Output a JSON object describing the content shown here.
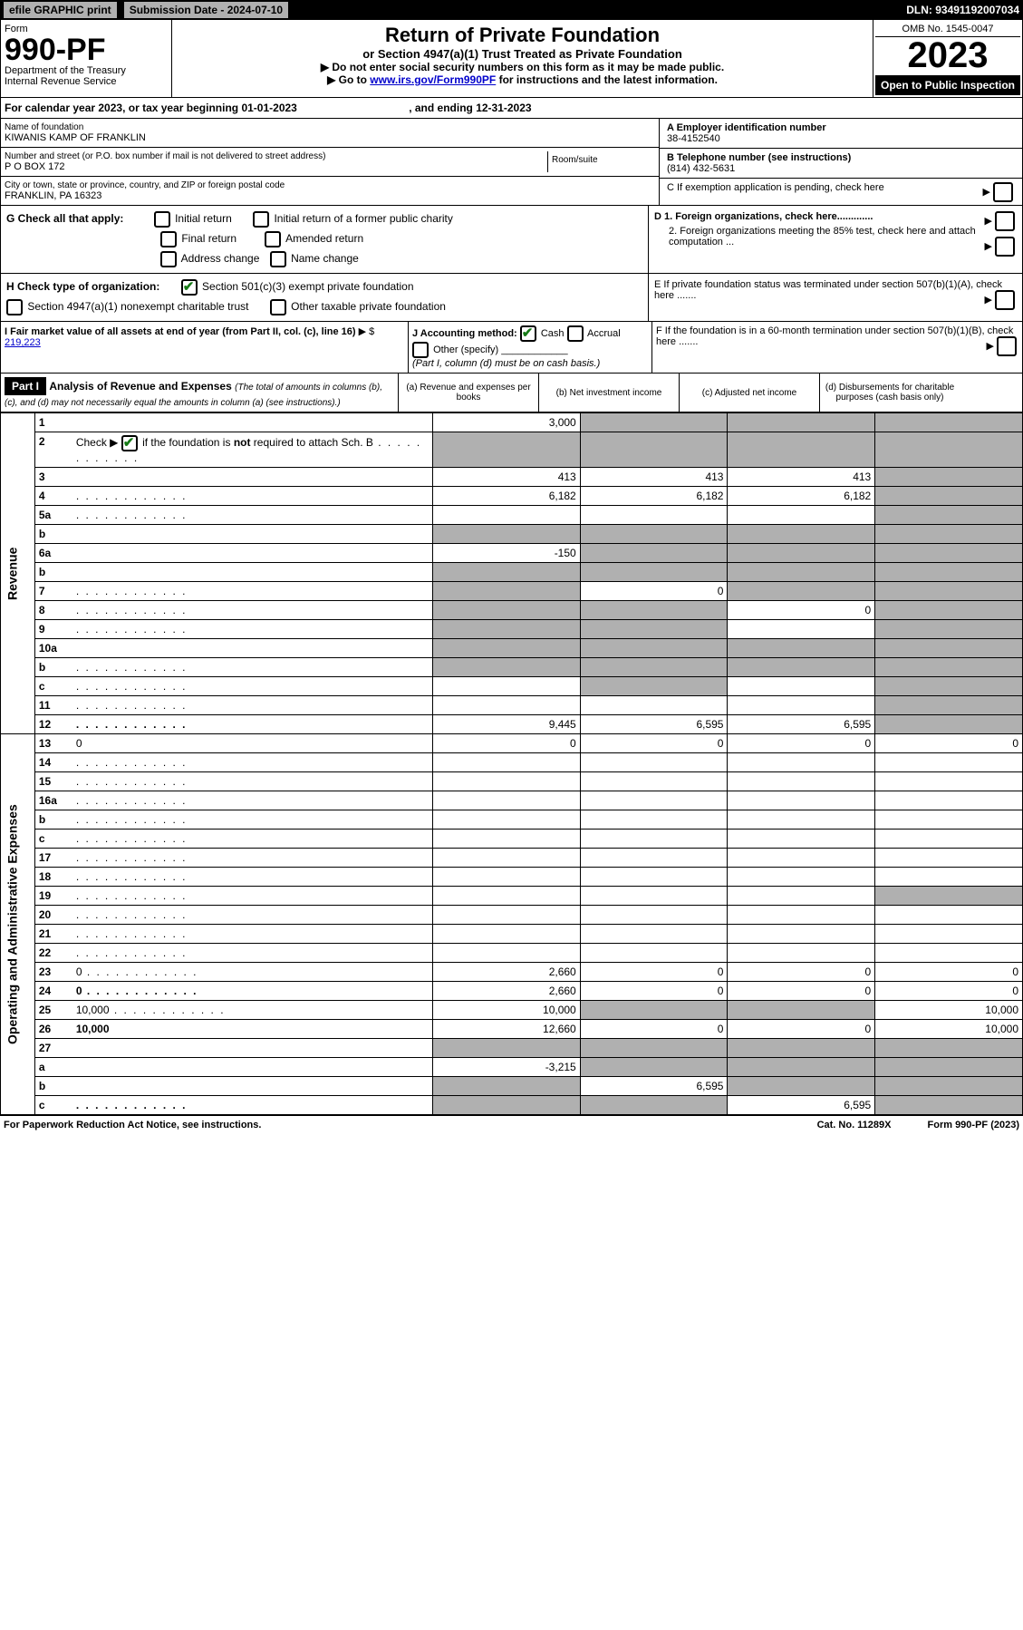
{
  "top": {
    "efile": "efile GRAPHIC print",
    "submission": "Submission Date - 2024-07-10",
    "dln": "DLN: 93491192007034"
  },
  "header": {
    "form_label": "Form",
    "form_number": "990-PF",
    "dept": "Department of the Treasury",
    "irs": "Internal Revenue Service",
    "title": "Return of Private Foundation",
    "subtitle": "or Section 4947(a)(1) Trust Treated as Private Foundation",
    "note1": "▶ Do not enter social security numbers on this form as it may be made public.",
    "note2_pre": "▶ Go to ",
    "note2_link": "www.irs.gov/Form990PF",
    "note2_post": " for instructions and the latest information.",
    "omb": "OMB No. 1545-0047",
    "year": "2023",
    "inspection": "Open to Public Inspection"
  },
  "calendar": {
    "text_pre": "For calendar year 2023, or tax year beginning ",
    "begin": "01-01-2023",
    "text_mid": ", and ending ",
    "end": "12-31-2023"
  },
  "info": {
    "name_label": "Name of foundation",
    "name": "KIWANIS KAMP OF FRANKLIN",
    "addr_label": "Number and street (or P.O. box number if mail is not delivered to street address)",
    "addr": "P O BOX 172",
    "room_label": "Room/suite",
    "city_label": "City or town, state or province, country, and ZIP or foreign postal code",
    "city": "FRANKLIN, PA  16323",
    "ein_label": "A Employer identification number",
    "ein": "38-4152540",
    "tel_label": "B  Telephone number (see instructions)",
    "tel": "(814) 432-5631",
    "c_label": "C  If exemption application is pending, check here",
    "d1_label": "D 1. Foreign organizations, check here.............",
    "d2_label": "2. Foreign organizations meeting the 85% test, check here and attach computation ...",
    "e_label": "E  If private foundation status was terminated under section 507(b)(1)(A), check here .......",
    "f_label": "F  If the foundation is in a 60-month termination under section 507(b)(1)(B), check here ......."
  },
  "g": {
    "label": "G Check all that apply:",
    "initial": "Initial return",
    "initial_former": "Initial return of a former public charity",
    "final": "Final return",
    "amended": "Amended return",
    "addr_change": "Address change",
    "name_change": "Name change"
  },
  "h": {
    "label": "H Check type of organization:",
    "opt1": "Section 501(c)(3) exempt private foundation",
    "opt2": "Section 4947(a)(1) nonexempt charitable trust",
    "opt3": "Other taxable private foundation"
  },
  "i": {
    "label": "I Fair market value of all assets at end of year (from Part II, col. (c), line 16)",
    "value": "219,223"
  },
  "j": {
    "label": "J Accounting method:",
    "cash": "Cash",
    "accrual": "Accrual",
    "other": "Other (specify)",
    "note": "(Part I, column (d) must be on cash basis.)"
  },
  "part1": {
    "label": "Part I",
    "title": "Analysis of Revenue and Expenses",
    "note": "(The total of amounts in columns (b), (c), and (d) may not necessarily equal the amounts in column (a) (see instructions).)",
    "col_a": "(a)  Revenue and expenses per books",
    "col_b": "(b)  Net investment income",
    "col_c": "(c)  Adjusted net income",
    "col_d": "(d)  Disbursements for charitable purposes (cash basis only)"
  },
  "side": {
    "revenue": "Revenue",
    "expenses": "Operating and Administrative Expenses"
  },
  "rows": [
    {
      "n": "1",
      "d": "",
      "a": "3,000",
      "b": "",
      "c": "",
      "shade_b": true,
      "shade_c": true,
      "shade_d": true
    },
    {
      "n": "2",
      "d": "",
      "a": "",
      "b": "",
      "c": "",
      "shade_a": true,
      "shade_b": true,
      "shade_c": true,
      "shade_d": true,
      "dots": true
    },
    {
      "n": "3",
      "d": "",
      "a": "413",
      "b": "413",
      "c": "413",
      "shade_d": true
    },
    {
      "n": "4",
      "d": "",
      "a": "6,182",
      "b": "6,182",
      "c": "6,182",
      "shade_d": true,
      "dots": true
    },
    {
      "n": "5a",
      "d": "",
      "a": "",
      "b": "",
      "c": "",
      "shade_d": true,
      "dots": true
    },
    {
      "n": "b",
      "d": "",
      "a": "",
      "b": "",
      "c": "",
      "shade_a": true,
      "shade_b": true,
      "shade_c": true,
      "shade_d": true
    },
    {
      "n": "6a",
      "d": "",
      "a": "-150",
      "b": "",
      "c": "",
      "shade_b": true,
      "shade_c": true,
      "shade_d": true
    },
    {
      "n": "b",
      "d": "",
      "a": "",
      "b": "",
      "c": "",
      "shade_a": true,
      "shade_b": true,
      "shade_c": true,
      "shade_d": true
    },
    {
      "n": "7",
      "d": "",
      "a": "",
      "b": "0",
      "c": "",
      "shade_a": true,
      "shade_c": true,
      "shade_d": true,
      "dots": true
    },
    {
      "n": "8",
      "d": "",
      "a": "",
      "b": "",
      "c": "0",
      "shade_a": true,
      "shade_b": true,
      "shade_d": true,
      "dots": true
    },
    {
      "n": "9",
      "d": "",
      "a": "",
      "b": "",
      "c": "",
      "shade_a": true,
      "shade_b": true,
      "shade_d": true,
      "dots": true
    },
    {
      "n": "10a",
      "d": "",
      "a": "",
      "b": "",
      "c": "",
      "shade_a": true,
      "shade_b": true,
      "shade_c": true,
      "shade_d": true
    },
    {
      "n": "b",
      "d": "",
      "a": "",
      "b": "",
      "c": "",
      "shade_a": true,
      "shade_b": true,
      "shade_c": true,
      "shade_d": true,
      "dots": true
    },
    {
      "n": "c",
      "d": "",
      "a": "",
      "b": "",
      "c": "",
      "shade_b": true,
      "shade_d": true,
      "dots": true
    },
    {
      "n": "11",
      "d": "",
      "a": "",
      "b": "",
      "c": "",
      "shade_d": true,
      "dots": true
    },
    {
      "n": "12",
      "d": "",
      "a": "9,445",
      "b": "6,595",
      "c": "6,595",
      "shade_d": true,
      "bold": true,
      "dots": true
    },
    {
      "n": "13",
      "d": "0",
      "a": "0",
      "b": "0",
      "c": "0"
    },
    {
      "n": "14",
      "d": "",
      "a": "",
      "b": "",
      "c": "",
      "dots": true
    },
    {
      "n": "15",
      "d": "",
      "a": "",
      "b": "",
      "c": "",
      "dots": true
    },
    {
      "n": "16a",
      "d": "",
      "a": "",
      "b": "",
      "c": "",
      "dots": true
    },
    {
      "n": "b",
      "d": "",
      "a": "",
      "b": "",
      "c": "",
      "dots": true
    },
    {
      "n": "c",
      "d": "",
      "a": "",
      "b": "",
      "c": "",
      "dots": true
    },
    {
      "n": "17",
      "d": "",
      "a": "",
      "b": "",
      "c": "",
      "dots": true
    },
    {
      "n": "18",
      "d": "",
      "a": "",
      "b": "",
      "c": "",
      "dots": true
    },
    {
      "n": "19",
      "d": "",
      "a": "",
      "b": "",
      "c": "",
      "shade_d": true,
      "dots": true
    },
    {
      "n": "20",
      "d": "",
      "a": "",
      "b": "",
      "c": "",
      "dots": true
    },
    {
      "n": "21",
      "d": "",
      "a": "",
      "b": "",
      "c": "",
      "dots": true
    },
    {
      "n": "22",
      "d": "",
      "a": "",
      "b": "",
      "c": "",
      "dots": true
    },
    {
      "n": "23",
      "d": "0",
      "a": "2,660",
      "b": "0",
      "c": "0",
      "dots": true
    },
    {
      "n": "24",
      "d": "0",
      "a": "2,660",
      "b": "0",
      "c": "0",
      "bold": true,
      "dots": true
    },
    {
      "n": "25",
      "d": "10,000",
      "a": "10,000",
      "b": "",
      "c": "",
      "shade_b": true,
      "shade_c": true,
      "dots": true
    },
    {
      "n": "26",
      "d": "10,000",
      "a": "12,660",
      "b": "0",
      "c": "0",
      "bold": true
    },
    {
      "n": "27",
      "d": "",
      "a": "",
      "b": "",
      "c": "",
      "shade_a": true,
      "shade_b": true,
      "shade_c": true,
      "shade_d": true
    },
    {
      "n": "a",
      "d": "",
      "a": "-3,215",
      "b": "",
      "c": "",
      "shade_b": true,
      "shade_c": true,
      "shade_d": true,
      "bold": true
    },
    {
      "n": "b",
      "d": "",
      "a": "",
      "b": "6,595",
      "c": "",
      "shade_a": true,
      "shade_c": true,
      "shade_d": true,
      "bold": true
    },
    {
      "n": "c",
      "d": "",
      "a": "",
      "b": "",
      "c": "6,595",
      "shade_a": true,
      "shade_b": true,
      "shade_d": true,
      "bold": true,
      "dots": true
    }
  ],
  "footer": {
    "left": "For Paperwork Reduction Act Notice, see instructions.",
    "mid": "Cat. No. 11289X",
    "right": "Form 990-PF (2023)"
  }
}
